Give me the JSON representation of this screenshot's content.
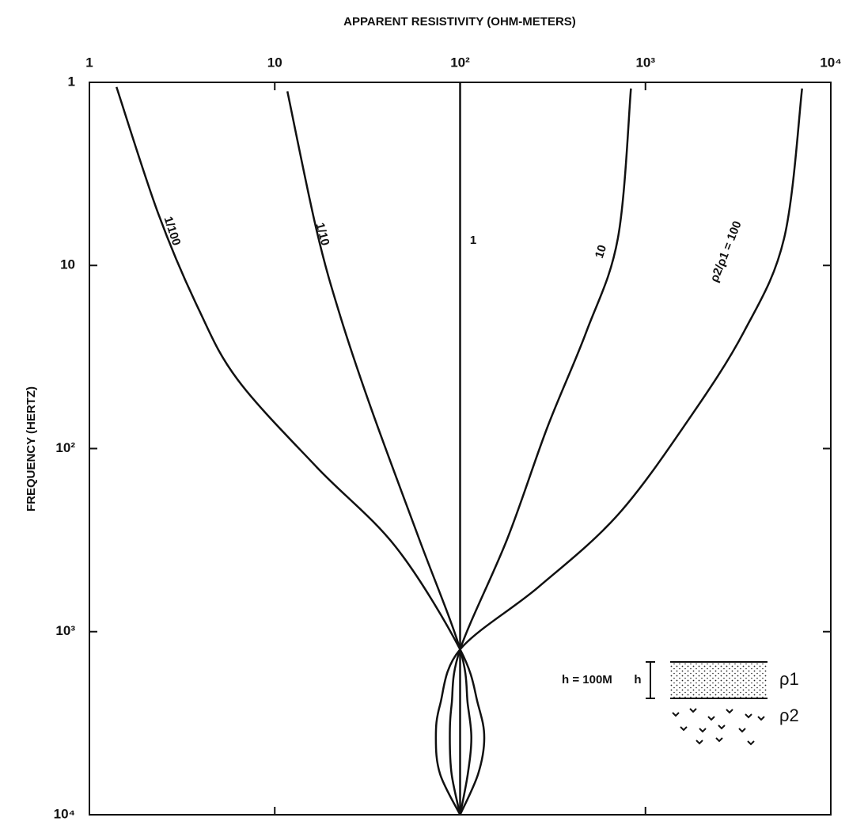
{
  "chart_data": {
    "type": "line",
    "title": "APPARENT RESISTIVITY (OHM-METERS)",
    "y_label": "FREQUENCY (HERTZ)",
    "xscale": "log",
    "yscale": "log",
    "y_inverted": true,
    "x_axis_position": "top",
    "xlim": [
      1,
      10000
    ],
    "xticks": [
      1,
      10,
      {
        "value": 100,
        "label": "10²"
      },
      {
        "value": 1000,
        "label": "10³"
      },
      {
        "value": 10000,
        "label": "10⁴"
      }
    ],
    "ylim": [
      1,
      10000
    ],
    "yticks": [
      1,
      10,
      {
        "value": 100,
        "label": "10²"
      },
      {
        "value": 1000,
        "label": "10³"
      },
      {
        "value": 10000,
        "label": "10⁴"
      }
    ],
    "series": [
      {
        "name": "1/100",
        "color": "#111111",
        "x": [
          1.4,
          2.35,
          3.85,
          6.3,
          16.8,
          45,
          100,
          125,
          135,
          125,
          100
        ],
        "y": [
          1.06,
          5.2,
          17,
          42,
          126,
          345,
          1250,
          2500,
          3800,
          6000,
          10000
        ]
      },
      {
        "name": "1/10",
        "color": "#111111",
        "x": [
          11.7,
          16.8,
          22.6,
          33.6,
          60,
          100,
          110,
          115,
          110,
          100
        ],
        "y": [
          1.12,
          6.4,
          19,
          63,
          310,
          1250,
          2500,
          3800,
          6000,
          10000
        ]
      },
      {
        "name": "1",
        "color": "#111111",
        "x": [
          100,
          100
        ],
        "y": [
          1,
          10000
        ]
      },
      {
        "name": "10",
        "color": "#111111",
        "x": [
          835,
          710,
          480,
          295,
          180,
          100,
          90,
          88,
          90,
          100
        ],
        "y": [
          1.08,
          7.1,
          23,
          77,
          310,
          1250,
          2500,
          3800,
          6000,
          10000
        ]
      },
      {
        "name": "ρ2/ρ1 = 100",
        "color": "#111111",
        "x": [
          7000,
          5600,
          3400,
          1700,
          710,
          265,
          100,
          78,
          74,
          78,
          100
        ],
        "y": [
          1.08,
          7.1,
          23,
          70,
          230,
          570,
          1250,
          2500,
          3800,
          6000,
          10000
        ]
      }
    ],
    "inset": {
      "thickness_label": "h = 100M",
      "h_label": "h",
      "upper_layer": "ρ1",
      "lower_layer": "ρ2"
    }
  }
}
